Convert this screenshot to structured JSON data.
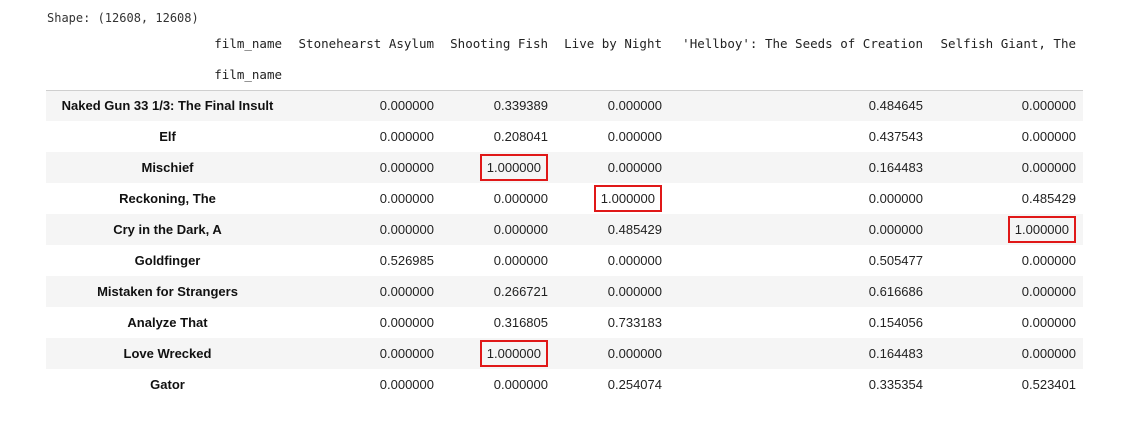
{
  "shape_text": "Shape: (12608, 12608)",
  "columns_index_name": "film_name",
  "rows_index_name": "film_name",
  "columns": [
    "Stonehearst Asylum",
    "Shooting Fish",
    "Live by Night",
    "'Hellboy': The Seeds of Creation",
    "Selfish Giant, The"
  ],
  "rows": [
    {
      "label": "Naked Gun 33 1/3: The Final Insult",
      "values": [
        "0.000000",
        "0.339389",
        "0.000000",
        "0.484645",
        "0.000000"
      ],
      "highlight": []
    },
    {
      "label": "Elf",
      "values": [
        "0.000000",
        "0.208041",
        "0.000000",
        "0.437543",
        "0.000000"
      ],
      "highlight": []
    },
    {
      "label": "Mischief",
      "values": [
        "0.000000",
        "1.000000",
        "0.000000",
        "0.164483",
        "0.000000"
      ],
      "highlight": [
        1
      ]
    },
    {
      "label": "Reckoning, The",
      "values": [
        "0.000000",
        "0.000000",
        "1.000000",
        "0.000000",
        "0.485429"
      ],
      "highlight": [
        2
      ]
    },
    {
      "label": "Cry in the Dark, A",
      "values": [
        "0.000000",
        "0.000000",
        "0.485429",
        "0.000000",
        "1.000000"
      ],
      "highlight": [
        4
      ]
    },
    {
      "label": "Goldfinger",
      "values": [
        "0.526985",
        "0.000000",
        "0.000000",
        "0.505477",
        "0.000000"
      ],
      "highlight": []
    },
    {
      "label": "Mistaken for Strangers",
      "values": [
        "0.000000",
        "0.266721",
        "0.000000",
        "0.616686",
        "0.000000"
      ],
      "highlight": []
    },
    {
      "label": "Analyze That",
      "values": [
        "0.000000",
        "0.316805",
        "0.733183",
        "0.154056",
        "0.000000"
      ],
      "highlight": []
    },
    {
      "label": "Love Wrecked",
      "values": [
        "0.000000",
        "1.000000",
        "0.000000",
        "0.164483",
        "0.000000"
      ],
      "highlight": [
        1
      ]
    },
    {
      "label": "Gator",
      "values": [
        "0.000000",
        "0.000000",
        "0.254074",
        "0.335354",
        "0.523401"
      ],
      "highlight": []
    }
  ],
  "colors": {
    "highlight_border": "#e01818",
    "stripe_row": "#f5f5f5",
    "header_rule": "#cfcfcf"
  }
}
